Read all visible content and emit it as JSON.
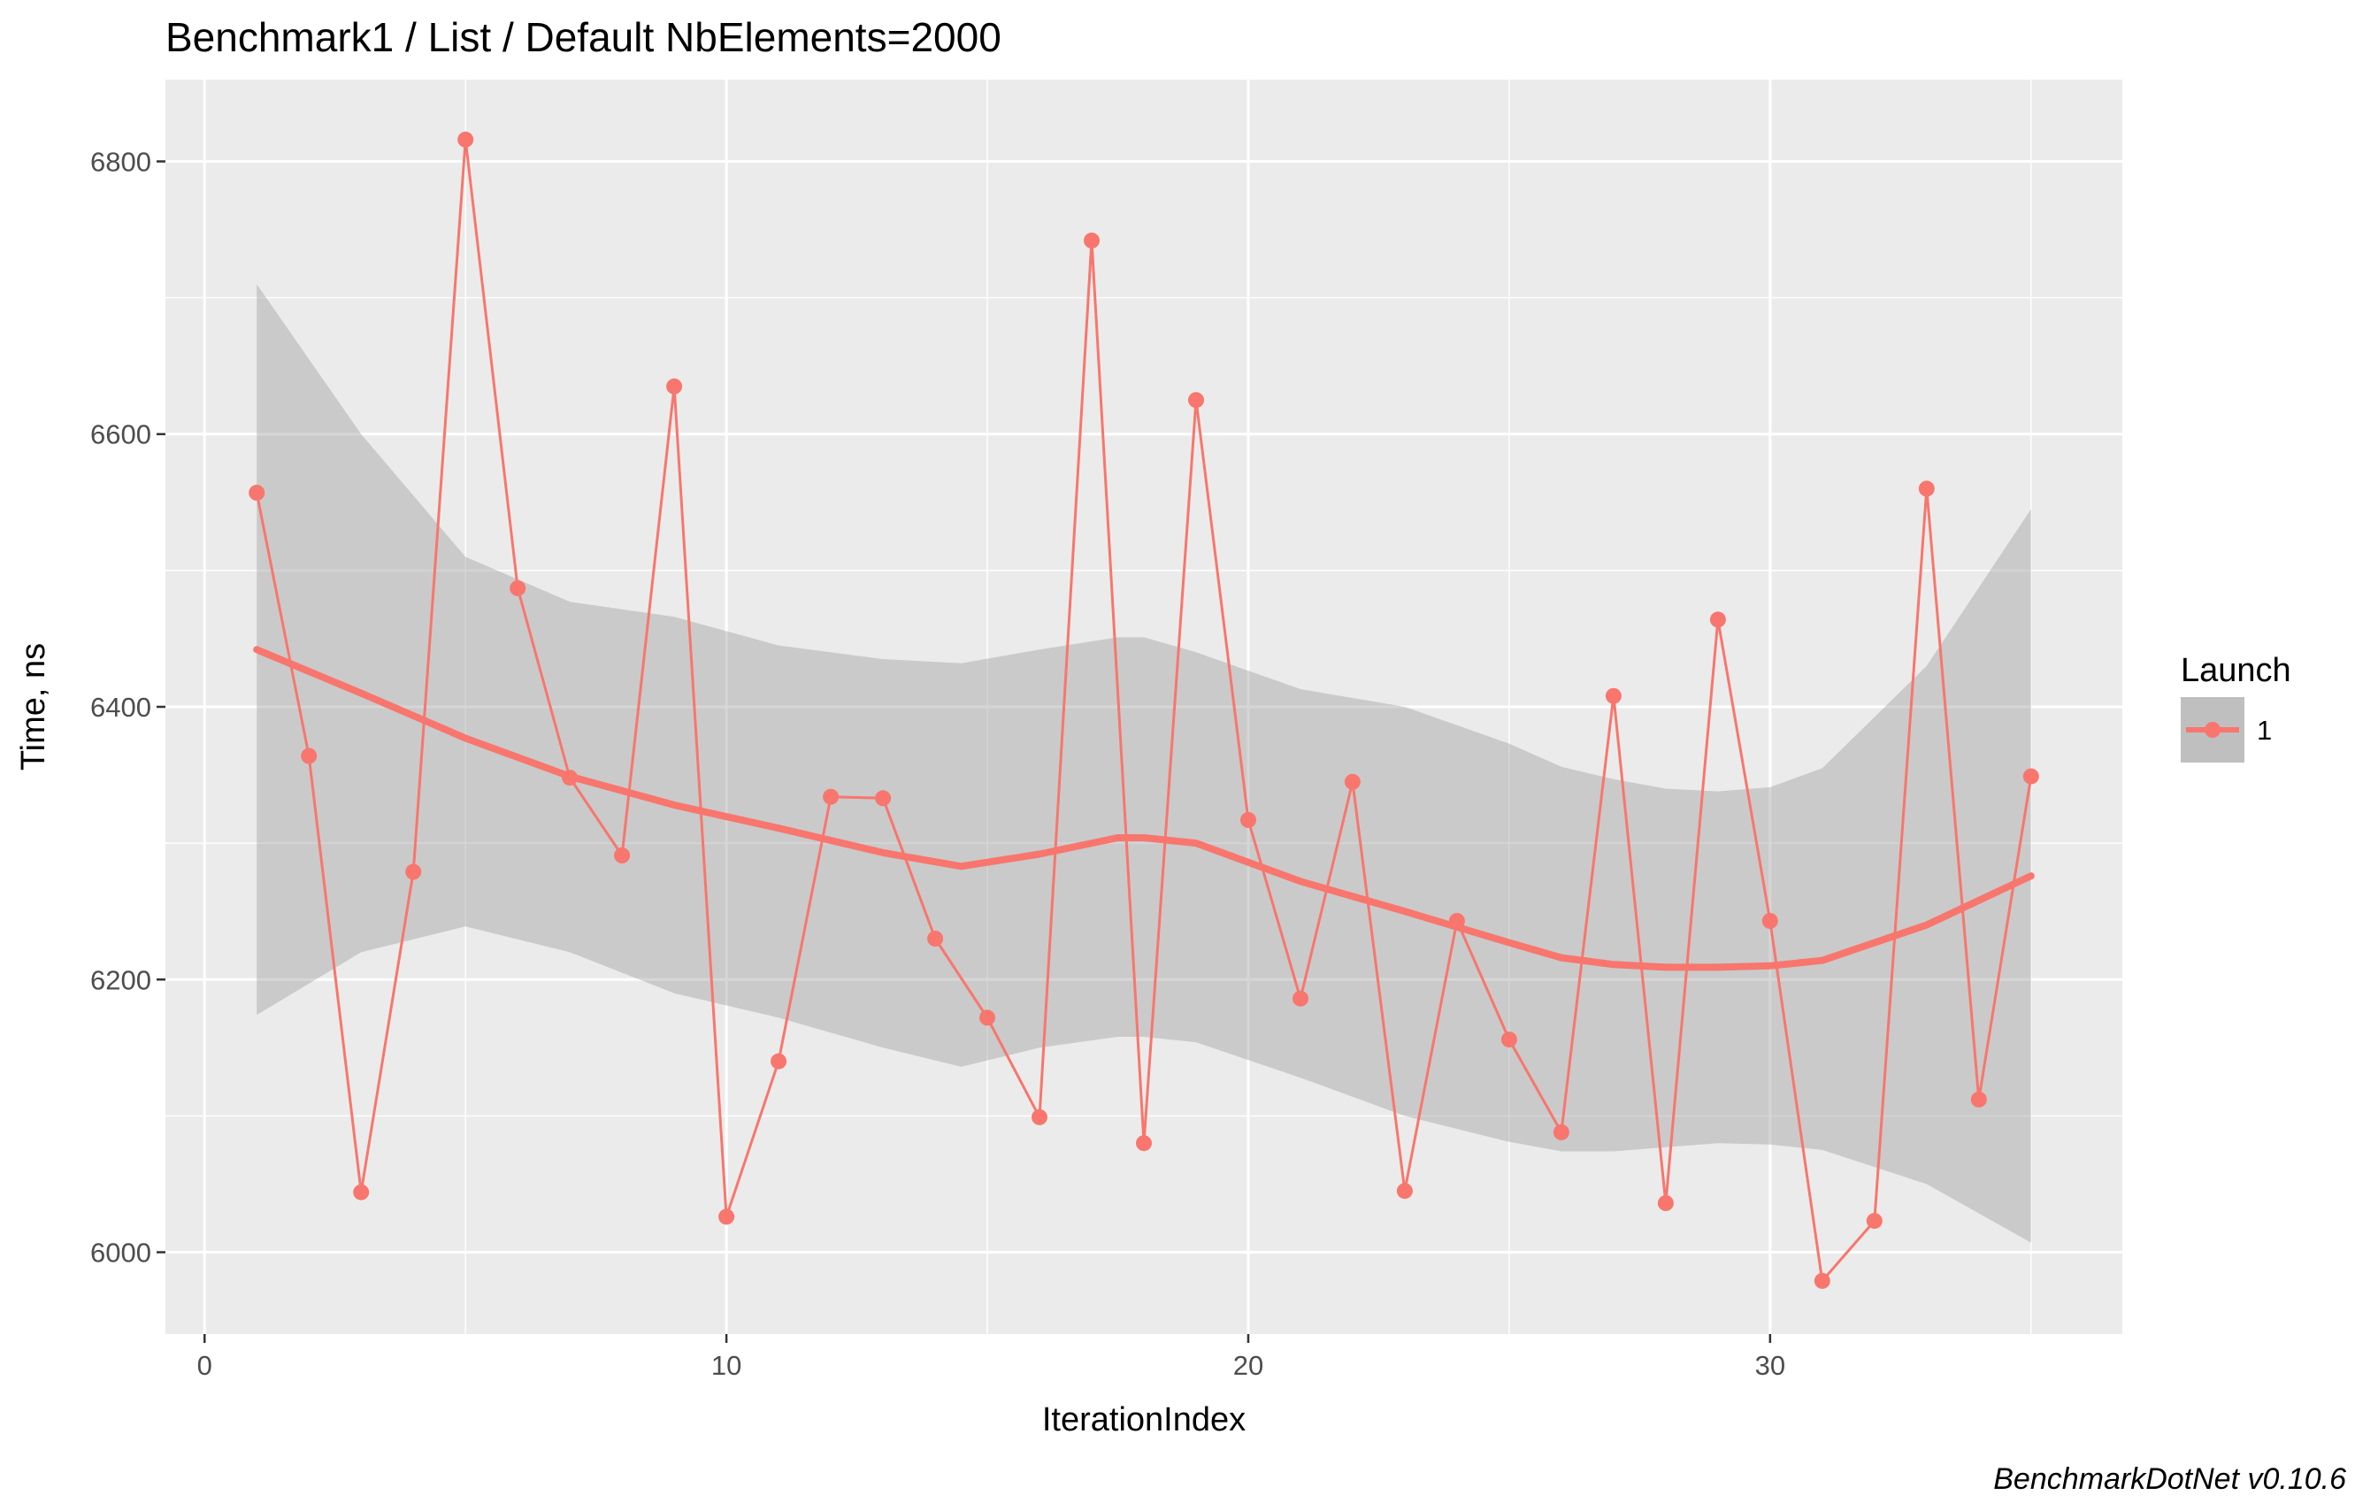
{
  "chart_data": {
    "type": "line",
    "title": "Benchmark1 / List / Default NbElements=2000",
    "xlabel": "IterationIndex",
    "ylabel": "Time, ns",
    "caption": "BenchmarkDotNet v0.10.6",
    "xlim": [
      -0.75,
      36.75
    ],
    "ylim": [
      5940,
      6860
    ],
    "x_ticks": [
      0,
      10,
      20,
      30
    ],
    "y_ticks": [
      6000,
      6200,
      6400,
      6600,
      6800
    ],
    "grid": true,
    "legend": {
      "title": "Launch",
      "position": "right",
      "entries": [
        "1"
      ]
    },
    "colors": {
      "series": "#f8766d",
      "smooth": "#f8766d",
      "ribbon": "#999999",
      "panel": "#ebebeb",
      "grid": "#ffffff"
    },
    "series": [
      {
        "name": "1",
        "x": [
          1,
          2,
          3,
          4,
          5,
          6,
          7,
          8,
          9,
          10,
          11,
          12,
          13,
          14,
          15,
          16,
          17,
          18,
          19,
          20,
          21,
          22,
          23,
          24,
          25,
          26,
          27,
          28,
          29,
          30,
          31,
          32,
          33,
          34,
          35
        ],
        "values": [
          6557,
          6364,
          6044,
          6279,
          6816,
          6487,
          6348,
          6291,
          6635,
          6026,
          6140,
          6334,
          6333,
          6230,
          6172,
          6099,
          6742,
          6080,
          6625,
          6317,
          6186,
          6345,
          6045,
          6243,
          6156,
          6088,
          6408,
          6036,
          6464,
          6243,
          5979,
          6023,
          6560,
          6112,
          6349
        ]
      }
    ],
    "smooth": {
      "x": [
        1,
        3,
        5,
        7,
        9,
        11,
        13,
        14.5,
        16,
        17.5,
        18,
        19,
        21,
        23,
        25,
        26,
        27,
        28,
        29,
        30,
        31,
        33,
        35
      ],
      "values": [
        6442,
        6410,
        6377,
        6349,
        6328,
        6311,
        6293,
        6283,
        6292,
        6304,
        6304,
        6300,
        6272,
        6250,
        6227,
        6216,
        6211,
        6209,
        6209,
        6210,
        6214,
        6240,
        6276
      ],
      "upper": [
        6710,
        6600,
        6510,
        6477,
        6466,
        6445,
        6435,
        6432,
        6442,
        6451,
        6451,
        6440,
        6413,
        6400,
        6373,
        6356,
        6347,
        6340,
        6338,
        6341,
        6355,
        6430,
        6545
      ],
      "lower": [
        6174,
        6220,
        6239,
        6220,
        6190,
        6172,
        6150,
        6136,
        6150,
        6158,
        6158,
        6154,
        6128,
        6100,
        6081,
        6074,
        6074,
        6077,
        6080,
        6079,
        6075,
        6050,
        6007
      ]
    }
  }
}
